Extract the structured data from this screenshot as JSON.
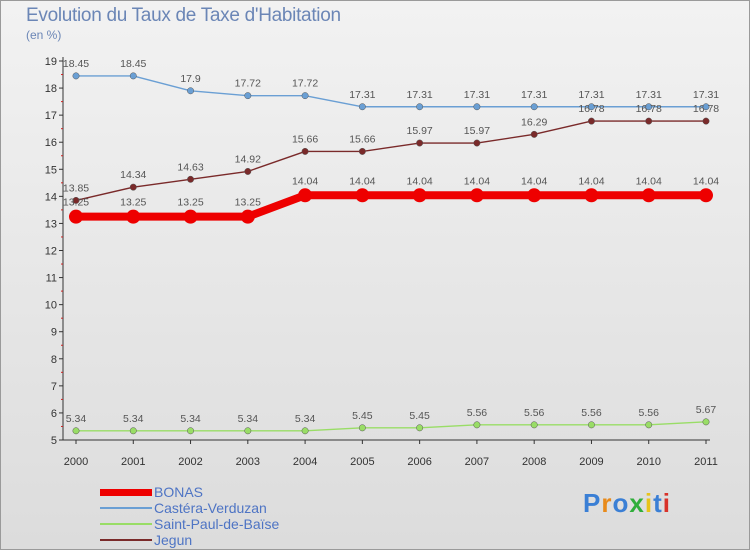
{
  "header": {
    "title": "Evolution du Taux de Taxe d'Habitation",
    "subtitle": "(en %)"
  },
  "logo": {
    "text": "Proxiti"
  },
  "chart_data": {
    "type": "line",
    "title": "Evolution du Taux de Taxe d'Habitation",
    "subtitle": "(en %)",
    "x": [
      "2000",
      "2001",
      "2002",
      "2003",
      "2004",
      "2005",
      "2006",
      "2007",
      "2008",
      "2009",
      "2010",
      "2011"
    ],
    "ylim": [
      5,
      19
    ],
    "yticks": [
      5,
      6,
      7,
      8,
      9,
      10,
      11,
      12,
      13,
      14,
      15,
      16,
      17,
      18,
      19
    ],
    "grid": false,
    "legend_position": "bottom-left",
    "series": [
      {
        "name": "BONAS",
        "color": "#ee0000",
        "values": [
          13.25,
          13.25,
          13.25,
          13.25,
          14.04,
          14.04,
          14.04,
          14.04,
          14.04,
          14.04,
          14.04,
          14.04
        ],
        "labels": [
          "13.25",
          "13.25",
          "13.25",
          "13.25",
          "14.04",
          "14.04",
          "14.04",
          "14.04",
          "14.04",
          "14.04",
          "14.04",
          "14.04"
        ]
      },
      {
        "name": "Castéra-Verduzan",
        "color": "#6a9fd4",
        "values": [
          18.45,
          18.45,
          17.9,
          17.72,
          17.72,
          17.31,
          17.31,
          17.31,
          17.31,
          17.31,
          17.31,
          17.31
        ],
        "labels": [
          "18.45",
          "18.45",
          "17.9",
          "17.72",
          "17.72",
          "17.31",
          "17.31",
          "17.31",
          "17.31",
          "17.31",
          "17.31",
          "17.31"
        ]
      },
      {
        "name": "Saint-Paul-de-Baïse",
        "color": "#99dd66",
        "values": [
          5.34,
          5.34,
          5.34,
          5.34,
          5.34,
          5.45,
          5.45,
          5.56,
          5.56,
          5.56,
          5.56,
          5.67
        ],
        "labels": [
          "5.34",
          "5.34",
          "5.34",
          "5.34",
          "5.34",
          "5.45",
          "5.45",
          "5.56",
          "5.56",
          "5.56",
          "5.56",
          "5.67"
        ]
      },
      {
        "name": "Jegun",
        "color": "#7a2a2a",
        "values": [
          13.85,
          14.34,
          14.63,
          14.92,
          15.66,
          15.66,
          15.97,
          15.97,
          16.29,
          16.78,
          16.78,
          16.78
        ],
        "labels": [
          "13.85",
          "14.34",
          "14.63",
          "14.92",
          "15.66",
          "15.66",
          "15.97",
          "15.97",
          "16.29",
          "16.78",
          "16.78",
          "16.78"
        ]
      }
    ]
  }
}
